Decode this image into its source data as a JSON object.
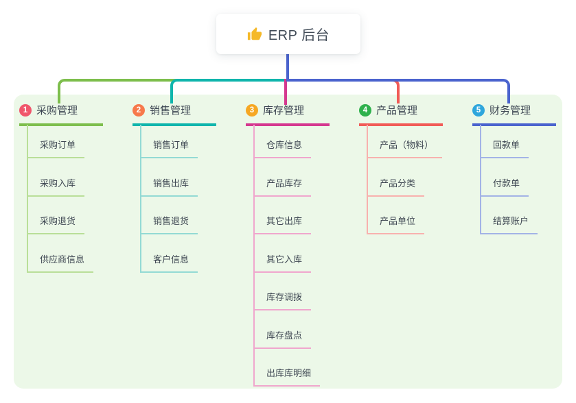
{
  "root": {
    "label": "ERP 后台",
    "icon": "thumbs-up",
    "icon_color": "#F5B929",
    "trunk_color": "#4A63CE"
  },
  "panel": {
    "background": "#ECF8E8"
  },
  "branches": [
    {
      "num": "1",
      "title": "采购管理",
      "badge_color": "#F0576C",
      "line_color": "#7DBE4C",
      "light_line_color": "#B9DF98",
      "children": [
        "采购订单",
        "采购入库",
        "采购退货",
        "供应商信息"
      ]
    },
    {
      "num": "2",
      "title": "销售管理",
      "badge_color": "#F7794B",
      "line_color": "#10B5AC",
      "light_line_color": "#93DAD4",
      "children": [
        "销售订单",
        "销售出库",
        "销售退货",
        "客户信息"
      ]
    },
    {
      "num": "3",
      "title": "库存管理",
      "badge_color": "#F6A723",
      "line_color": "#D5388F",
      "light_line_color": "#F0A6CD",
      "children": [
        "仓库信息",
        "产品库存",
        "其它出库",
        "其它入库",
        "库存调拨",
        "库存盘点",
        "出库库明细"
      ]
    },
    {
      "num": "4",
      "title": "产品管理",
      "badge_color": "#2FB14D",
      "line_color": "#F15B57",
      "light_line_color": "#F8B1AE",
      "children": [
        "产品（物料）",
        "产品分类",
        "产品单位"
      ]
    },
    {
      "num": "5",
      "title": "财务管理",
      "badge_color": "#2FA6DC",
      "line_color": "#4A63CE",
      "light_line_color": "#A3B3E6",
      "children": [
        "回款单",
        "付款单",
        "结算账户"
      ]
    }
  ]
}
